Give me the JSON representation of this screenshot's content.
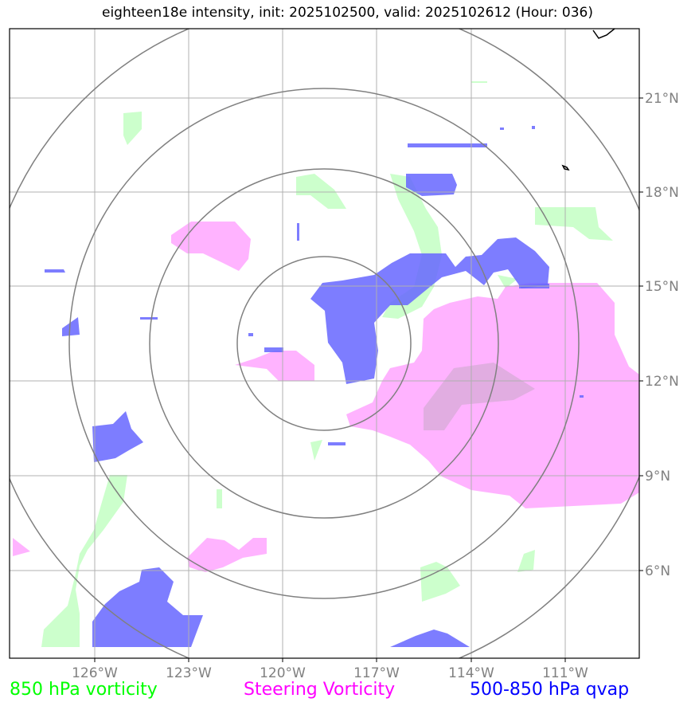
{
  "title": "eighteen18e intensity, init: 2025102500, valid: 2025102612 (Hour: 036)",
  "lon_labels": [
    "126°W",
    "123°W",
    "120°W",
    "117°W",
    "114°W",
    "111°W"
  ],
  "lat_labels": [
    "21°N",
    "18°N",
    "15°N",
    "12°N",
    "9°N",
    "6°N"
  ],
  "legend": [
    {
      "label": "850 hPa vorticity",
      "color": "#00ff00"
    },
    {
      "label": "Steering Vorticity",
      "color": "#ff00ff"
    },
    {
      "label": "500-850 hPa qvap",
      "color": "#0000ff"
    }
  ],
  "colors": {
    "vort850_fill": "#ccffcc",
    "steering_fill": "#ff99ff",
    "qvap_fill": "#6666ff",
    "range_rings": "#808080",
    "gridlines": "#b0b0b0",
    "coastline": "#000000"
  }
}
